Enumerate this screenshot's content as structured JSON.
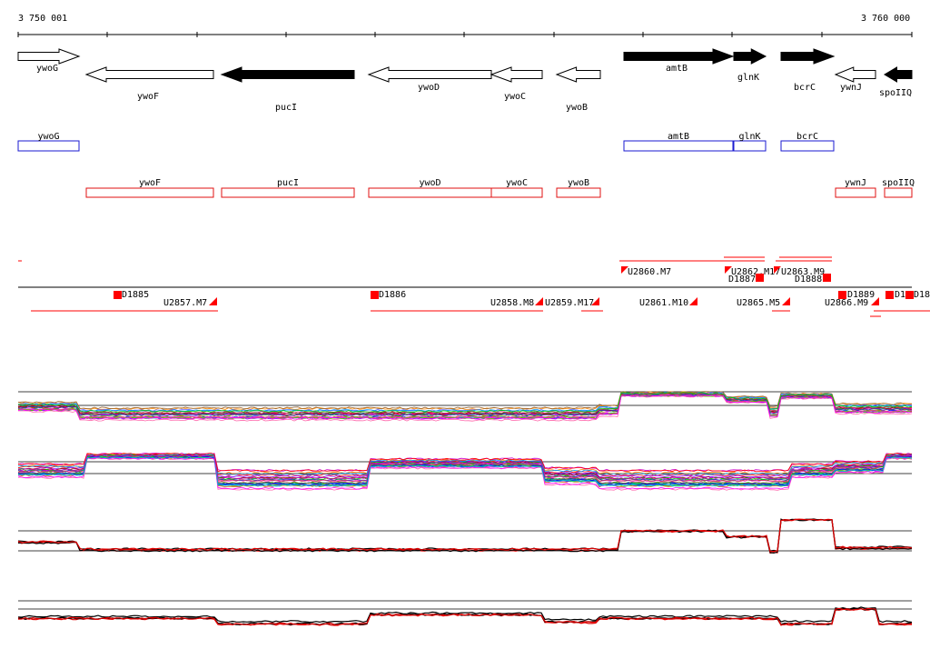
{
  "coordinates": {
    "start_label": "3 750 001",
    "end_label": "3 760 000"
  },
  "colors": {
    "forward_gene": "#000000",
    "reverse_gene": "#000000",
    "annot_blue": "#1a1ad0",
    "annot_red": "#e01010",
    "segment_red": "#ff0000"
  },
  "genes": [
    {
      "name": "ywoG",
      "strand": "+",
      "filled": false
    },
    {
      "name": "ywoF",
      "strand": "-",
      "filled": false
    },
    {
      "name": "pucI",
      "strand": "-",
      "filled": true
    },
    {
      "name": "ywoD",
      "strand": "-",
      "filled": false
    },
    {
      "name": "ywoC",
      "strand": "-",
      "filled": false
    },
    {
      "name": "ywoB",
      "strand": "-",
      "filled": false
    },
    {
      "name": "amtB",
      "strand": "+",
      "filled": true
    },
    {
      "name": "glnK",
      "strand": "+",
      "filled": true
    },
    {
      "name": "bcrC",
      "strand": "+",
      "filled": true
    },
    {
      "name": "ywnJ",
      "strand": "-",
      "filled": false
    },
    {
      "name": "spoIIQ",
      "strand": "-",
      "filled": true
    }
  ],
  "blue_annotations": [
    "ywoG",
    "amtB",
    "glnK",
    "bcrC"
  ],
  "red_annotations": [
    "ywoF",
    "pucI",
    "ywoD",
    "ywoC",
    "ywoB",
    "ywnJ",
    "spoIIQ"
  ],
  "segment_labels": [
    "D1885",
    "U2857.M7",
    "D1886",
    "U2858.M8",
    "U2859.M17",
    "U2860.M7",
    "U2861.M10",
    "U2862.M17",
    "D1887",
    "U2863.M9",
    "D1888",
    "U2865.M5",
    "U2866.M9",
    "D1889",
    "D18",
    "D18"
  ],
  "expression_panels": [
    {
      "name": "panel-1-multi-condition",
      "series_style": "multicolor"
    },
    {
      "name": "panel-2-multi-condition",
      "series_style": "multicolor"
    },
    {
      "name": "panel-3-black-red",
      "series_style": "black-red"
    },
    {
      "name": "panel-4-black-red",
      "series_style": "black-red"
    }
  ]
}
